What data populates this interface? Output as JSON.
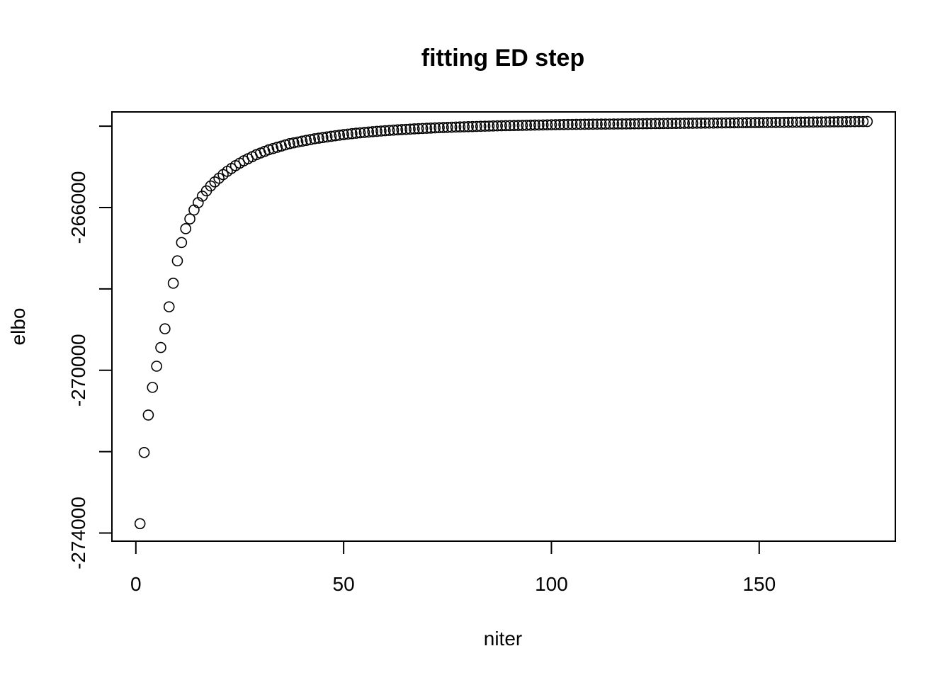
{
  "chart_data": {
    "type": "scatter",
    "title": "fitting ED step",
    "xlabel": "niter",
    "ylabel": "elbo",
    "xlim": [
      -5.76,
      182.76
    ],
    "ylim": [
      -274200,
      -263650
    ],
    "x_ticks": [
      0,
      50,
      100,
      150
    ],
    "y_ticks": [
      -274000,
      -272000,
      -270000,
      -268000,
      -266000,
      -264000
    ],
    "y_tick_labels_shown": [
      "-274000",
      "-270000",
      "-266000"
    ],
    "grid": false,
    "legend": "none",
    "marker": "open-circle",
    "color": "#000000",
    "points": {
      "x": [
        1,
        2,
        3,
        4,
        5,
        6,
        7,
        8,
        9,
        10,
        11,
        12,
        13,
        14,
        15,
        16,
        17,
        18,
        19,
        20,
        21,
        22,
        23,
        24,
        25,
        26,
        27,
        28,
        29,
        30,
        31,
        32,
        33,
        34,
        35,
        36,
        37,
        38,
        39,
        40,
        41,
        42,
        43,
        44,
        45,
        46,
        47,
        48,
        49,
        50,
        51,
        52,
        53,
        54,
        55,
        56,
        57,
        58,
        59,
        60,
        61,
        62,
        63,
        64,
        65,
        66,
        67,
        68,
        69,
        70,
        71,
        72,
        73,
        74,
        75,
        76,
        77,
        78,
        79,
        80,
        81,
        82,
        83,
        84,
        85,
        86,
        87,
        88,
        89,
        90,
        91,
        92,
        93,
        94,
        95,
        96,
        97,
        98,
        99,
        100,
        101,
        102,
        103,
        104,
        105,
        106,
        107,
        108,
        109,
        110,
        111,
        112,
        113,
        114,
        115,
        116,
        117,
        118,
        119,
        120,
        121,
        122,
        123,
        124,
        125,
        126,
        127,
        128,
        129,
        130,
        131,
        132,
        133,
        134,
        135,
        136,
        137,
        138,
        139,
        140,
        141,
        142,
        143,
        144,
        145,
        146,
        147,
        148,
        149,
        150,
        151,
        152,
        153,
        154,
        155,
        156,
        157,
        158,
        159,
        160,
        161,
        162,
        163,
        164,
        165,
        166,
        167,
        168,
        169,
        170,
        171,
        172,
        173,
        174,
        175,
        176
      ],
      "y": [
        -273770,
        -272020,
        -271100,
        -270420,
        -269900,
        -269440,
        -268980,
        -268440,
        -267860,
        -267310,
        -266860,
        -266520,
        -266280,
        -266060,
        -265880,
        -265720,
        -265590,
        -265470,
        -265370,
        -265280,
        -265190,
        -265110,
        -265040,
        -264970,
        -264910,
        -264850,
        -264800,
        -264750,
        -264700,
        -264660,
        -264620,
        -264580,
        -264550,
        -264520,
        -264490,
        -264460,
        -264430,
        -264410,
        -264390,
        -264370,
        -264350,
        -264330,
        -264310,
        -264295,
        -264280,
        -264265,
        -264250,
        -264236,
        -264222,
        -264208,
        -264196,
        -264185,
        -264174,
        -264164,
        -264154,
        -264145,
        -264136,
        -264128,
        -264120,
        -264112,
        -264105,
        -264098,
        -264091,
        -264085,
        -264079,
        -264073,
        -264067,
        -264062,
        -264057,
        -264052,
        -264047,
        -264042,
        -264038,
        -264034,
        -264030,
        -264026,
        -264022,
        -264019,
        -264016,
        -264013,
        -264010,
        -264007,
        -264004,
        -264001,
        -263998,
        -263995,
        -263992,
        -263990,
        -263988,
        -263986,
        -263984,
        -263982,
        -263980,
        -263978,
        -263976,
        -263974,
        -263972,
        -263970,
        -263968,
        -263966,
        -263964,
        -263962,
        -263960,
        -263958,
        -263957,
        -263956,
        -263955,
        -263954,
        -263953,
        -263952,
        -263951,
        -263950,
        -263949,
        -263948,
        -263947,
        -263946,
        -263945,
        -263944,
        -263943,
        -263942,
        -263941,
        -263940,
        -263939,
        -263938,
        -263937,
        -263936,
        -263935,
        -263934,
        -263933,
        -263932,
        -263931,
        -263930,
        -263929,
        -263928,
        -263927,
        -263926,
        -263925,
        -263924,
        -263923,
        -263922,
        -263921,
        -263920,
        -263919,
        -263918,
        -263917,
        -263916,
        -263915,
        -263914,
        -263913,
        -263912,
        -263911,
        -263910,
        -263909,
        -263908,
        -263907,
        -263906,
        -263905,
        -263904,
        -263903,
        -263902,
        -263901,
        -263900,
        -263899,
        -263898,
        -263897,
        -263896,
        -263895,
        -263894,
        -263893,
        -263892,
        -263891,
        -263890,
        -263889,
        -263888,
        -263887,
        -263886
      ]
    }
  }
}
